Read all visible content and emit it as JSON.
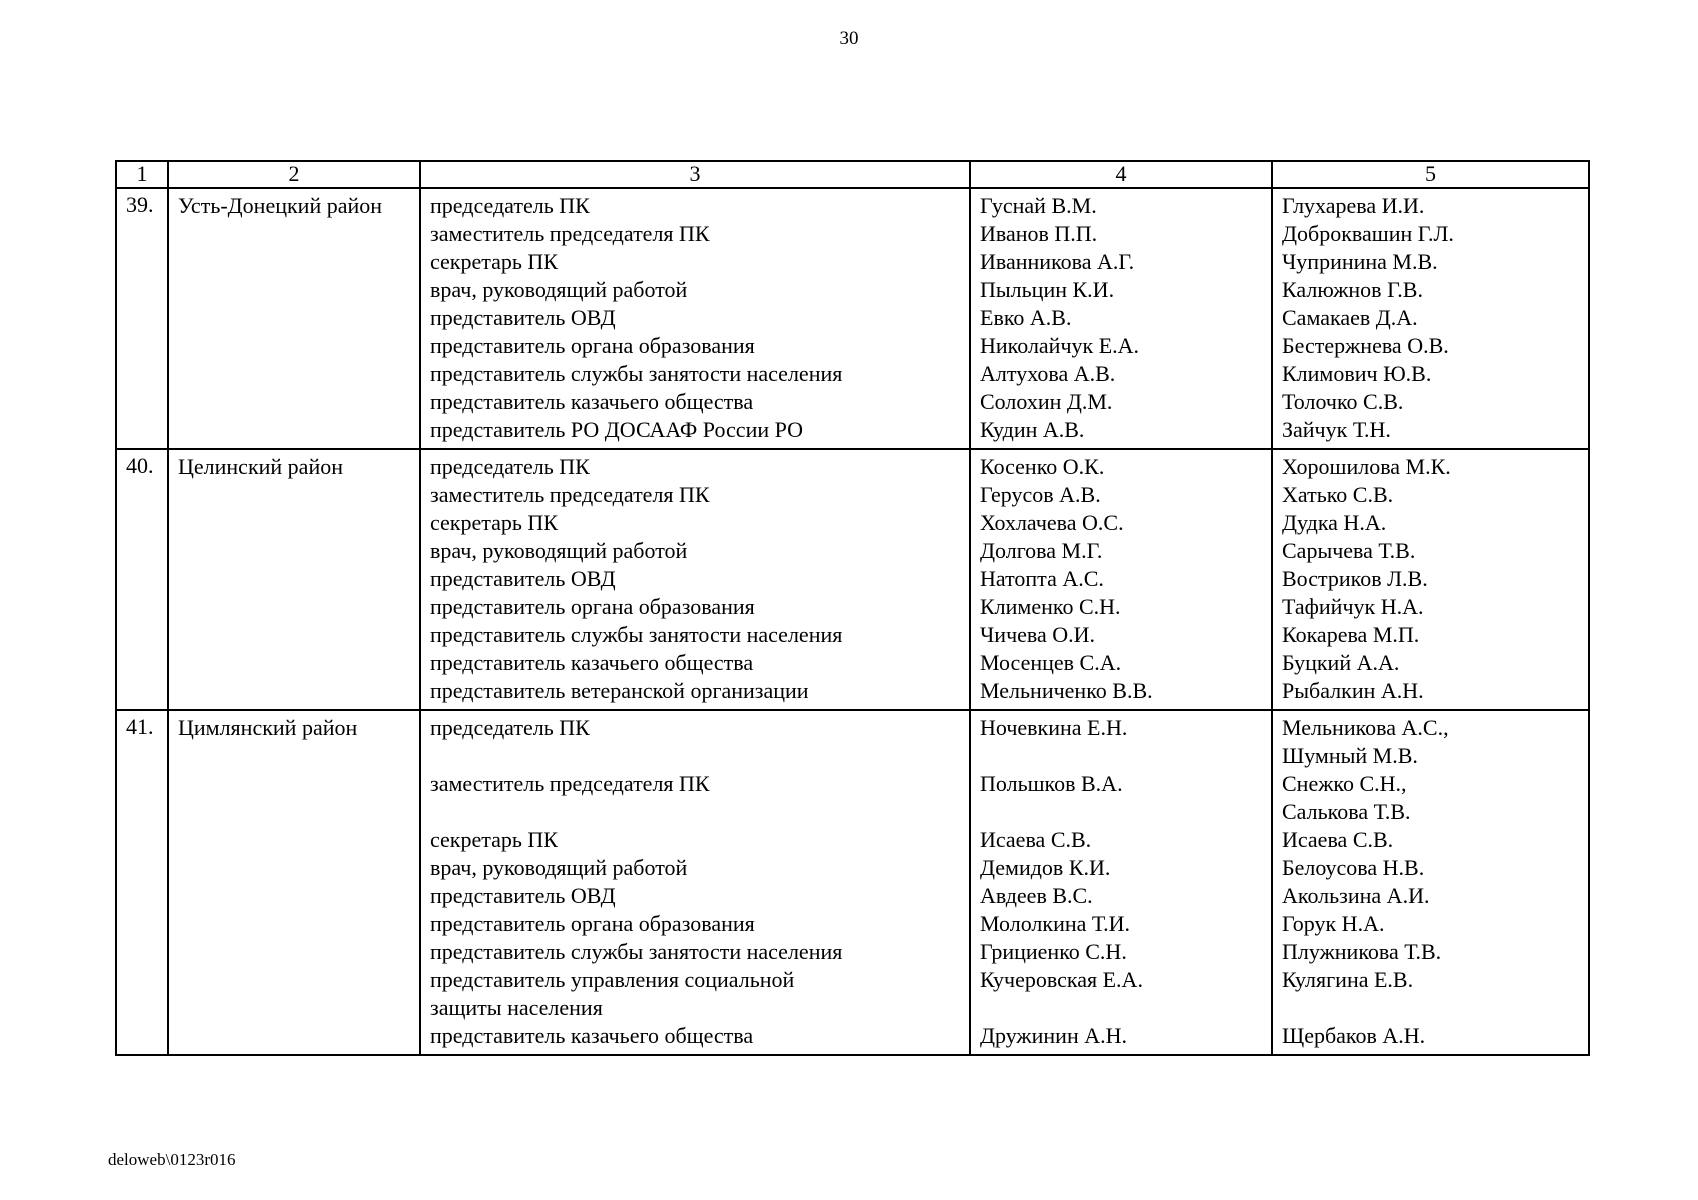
{
  "page": {
    "number": "30",
    "footer_code": "deloweb\\0123r016"
  },
  "table": {
    "header": [
      "1",
      "2",
      "3",
      "4",
      "5"
    ],
    "rows": [
      {
        "num": "39.",
        "district": "Усть-Донецкий район",
        "positions": [
          "председатель ПК",
          "заместитель председателя ПК",
          "секретарь ПК",
          "врач, руководящий работой",
          "представитель ОВД",
          "представитель органа образования",
          "представитель службы занятости населения",
          "представитель казачьего общества",
          "представитель РО ДОСААФ России РО"
        ],
        "column4": [
          "Гуснай В.М.",
          "Иванов П.П.",
          "Иванникова А.Г.",
          "Пыльцин К.И.",
          "Евко А.В.",
          "Николайчук Е.А.",
          "Алтухова А.В.",
          "Солохин Д.М.",
          "Кудин А.В."
        ],
        "column5": [
          "Глухарева И.И.",
          "Доброквашин Г.Л.",
          "Чупринина М.В.",
          "Калюжнов Г.В.",
          "Самакаев Д.А.",
          "Бестержнева О.В.",
          "Климович Ю.В.",
          "Толочко С.В.",
          "Зайчук Т.Н."
        ]
      },
      {
        "num": "40.",
        "district": "Целинский район",
        "positions": [
          "председатель ПК",
          "заместитель председателя ПК",
          "секретарь ПК",
          "врач, руководящий работой",
          "представитель ОВД",
          "представитель органа образования",
          "представитель службы занятости населения",
          "представитель казачьего общества",
          "представитель ветеранской организации"
        ],
        "column4": [
          "Косенко О.К.",
          "Герусов А.В.",
          "Хохлачева О.С.",
          "Долгова М.Г.",
          "Натопта А.С.",
          "Клименко С.Н.",
          "Чичева О.И.",
          "Мосенцев С.А.",
          "Мельниченко В.В."
        ],
        "column5": [
          "Хорошилова М.К.",
          "Хатько С.В.",
          "Дудка Н.А.",
          "Сарычева Т.В.",
          "Востриков Л.В.",
          "Тафийчук Н.А.",
          "Кокарева М.П.",
          "Буцкий А.А.",
          "Рыбалкин А.Н."
        ]
      },
      {
        "num": "41.",
        "district": "Цимлянский район",
        "positions": [
          "председатель ПК",
          "",
          "заместитель председателя ПК",
          "",
          "секретарь ПК",
          "врач, руководящий работой",
          "представитель ОВД",
          "представитель органа образования",
          "представитель службы занятости населения",
          "представитель управления социальной",
          "защиты населения",
          "представитель казачьего общества"
        ],
        "column4": [
          "Ночевкина Е.Н.",
          "",
          "Польшков В.А.",
          "",
          "Исаева С.В.",
          "Демидов К.И.",
          "Авдеев В.С.",
          "Мололкина Т.И.",
          "Грициенко С.Н.",
          "Кучеровская Е.А.",
          "",
          "Дружинин А.Н."
        ],
        "column5": [
          "Мельникова А.С.,",
          "Шумный М.В.",
          "Снежко С.Н.,",
          "Салькова Т.В.",
          "Исаева С.В.",
          "Белоусова Н.В.",
          "Акользина А.И.",
          "Горук Н.А.",
          "Плужникова Т.В.",
          "Кулягина Е.В.",
          "",
          "Щербаков А.Н."
        ]
      }
    ]
  }
}
